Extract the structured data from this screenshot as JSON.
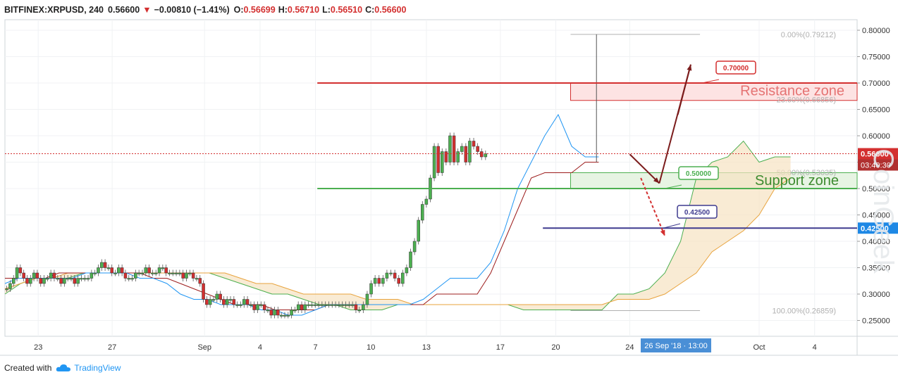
{
  "header": {
    "symbol": "BITFINEX:XRPUSD, 240",
    "last": "0.56600",
    "change": "−0.00810 (−1.41%)",
    "o_label": "O:",
    "o_value": "0.56699",
    "h_label": "H:",
    "h_value": "0.56710",
    "l_label": "L:",
    "l_value": "0.56510",
    "c_label": "C:",
    "c_value": "0.56600"
  },
  "footer": {
    "created_with": "Created with",
    "brand": "TradingView"
  },
  "watermark": "CoinGeek",
  "colors": {
    "resistance": "#d32f2f",
    "support": "#4caf50",
    "level": "#3f3b8f",
    "arrow_up": "#7b1c1c",
    "candle_up": "#4caf50",
    "candle_down": "#d32f2f",
    "cloud_a": "#4caf50",
    "cloud_b": "#e8a33d",
    "tenkan": "#2196f3",
    "kijun": "#9c1c1c"
  },
  "chart_data": {
    "type": "candlestick",
    "timeframe": "240",
    "yrange": [
      0.22,
      0.82
    ],
    "price_ticks": [
      "0.80000",
      "0.75000",
      "0.70000",
      "0.65000",
      "0.60000",
      "0.55000",
      "0.50000",
      "0.45000",
      "0.40000",
      "0.35000",
      "0.30000",
      "0.25000"
    ],
    "price_tick_values": [
      0.8,
      0.75,
      0.7,
      0.65,
      0.6,
      0.55,
      0.5,
      0.45,
      0.4,
      0.35,
      0.3,
      0.25
    ],
    "date_ticks": [
      "23",
      "27",
      "Sep",
      "4",
      "7",
      "10",
      "13",
      "17",
      "20",
      "24",
      "Oct",
      "4"
    ],
    "date_tick_days": [
      23,
      27,
      32,
      35,
      38,
      41,
      44,
      48,
      51,
      55,
      62,
      65
    ],
    "xrange_days": [
      21.2,
      67.3
    ],
    "current_price_label": "0.56600",
    "countdown_label": "03:40:30",
    "level_label": "0.42500",
    "crosshair_date": "26 Sep '18 · 13:00",
    "crosshair_day": 57.5,
    "close_series": {
      "start_day": 21.3,
      "step_days": 0.1667,
      "values": [
        0.31,
        0.32,
        0.33,
        0.35,
        0.34,
        0.33,
        0.32,
        0.33,
        0.34,
        0.33,
        0.32,
        0.33,
        0.33,
        0.34,
        0.33,
        0.33,
        0.32,
        0.33,
        0.33,
        0.33,
        0.32,
        0.33,
        0.33,
        0.33,
        0.33,
        0.34,
        0.34,
        0.35,
        0.36,
        0.35,
        0.35,
        0.34,
        0.34,
        0.35,
        0.34,
        0.33,
        0.33,
        0.33,
        0.34,
        0.34,
        0.34,
        0.35,
        0.34,
        0.34,
        0.34,
        0.35,
        0.35,
        0.34,
        0.34,
        0.34,
        0.34,
        0.34,
        0.33,
        0.34,
        0.34,
        0.33,
        0.33,
        0.32,
        0.29,
        0.28,
        0.29,
        0.29,
        0.3,
        0.29,
        0.28,
        0.29,
        0.29,
        0.28,
        0.28,
        0.28,
        0.29,
        0.28,
        0.28,
        0.27,
        0.28,
        0.28,
        0.27,
        0.27,
        0.26,
        0.27,
        0.26,
        0.26,
        0.26,
        0.26,
        0.27,
        0.27,
        0.28,
        0.27,
        0.28,
        0.28,
        0.28,
        0.28,
        0.28,
        0.28,
        0.28,
        0.28,
        0.28,
        0.28,
        0.28,
        0.28,
        0.28,
        0.28,
        0.28,
        0.27,
        0.27,
        0.28,
        0.3,
        0.32,
        0.33,
        0.32,
        0.33,
        0.34,
        0.34,
        0.33,
        0.32,
        0.34,
        0.35,
        0.38,
        0.4,
        0.44,
        0.47,
        0.48,
        0.52,
        0.58,
        0.53,
        0.57,
        0.55,
        0.6,
        0.55,
        0.57,
        0.58,
        0.55,
        0.59,
        0.58,
        0.57,
        0.56,
        0.566
      ],
      "bar_pixel_step": 0,
      "note_hi_spike": 0.79212
    },
    "ichimoku": {
      "tenkan": [
        0.32,
        0.33,
        0.33,
        0.33,
        0.33,
        0.33,
        0.34,
        0.34,
        0.34,
        0.34,
        0.33,
        0.33,
        0.32,
        0.3,
        0.29,
        0.29,
        0.28,
        0.28,
        0.28,
        0.27,
        0.27,
        0.26,
        0.26,
        0.27,
        0.28,
        0.28,
        0.28,
        0.28,
        0.28,
        0.28,
        0.28,
        0.29,
        0.31,
        0.33,
        0.33,
        0.33,
        0.36,
        0.42,
        0.5,
        0.55,
        0.6,
        0.64,
        0.58,
        0.56,
        0.56
      ],
      "kijun": [
        0.33,
        0.33,
        0.33,
        0.33,
        0.34,
        0.34,
        0.34,
        0.34,
        0.34,
        0.34,
        0.34,
        0.33,
        0.33,
        0.32,
        0.31,
        0.3,
        0.29,
        0.28,
        0.28,
        0.28,
        0.27,
        0.27,
        0.27,
        0.27,
        0.28,
        0.28,
        0.28,
        0.28,
        0.28,
        0.28,
        0.28,
        0.28,
        0.3,
        0.3,
        0.3,
        0.3,
        0.34,
        0.4,
        0.46,
        0.52,
        0.53,
        0.53,
        0.53,
        0.55,
        0.55
      ],
      "span_a": [
        0.3,
        0.32,
        0.33,
        0.33,
        0.33,
        0.34,
        0.34,
        0.34,
        0.34,
        0.34,
        0.34,
        0.34,
        0.34,
        0.34,
        0.33,
        0.32,
        0.31,
        0.3,
        0.3,
        0.29,
        0.28,
        0.28,
        0.27,
        0.27,
        0.27,
        0.28,
        0.28,
        0.28,
        0.28,
        0.28,
        0.28,
        0.28,
        0.28,
        0.27,
        0.27,
        0.27,
        0.27,
        0.27,
        0.27,
        0.3,
        0.3,
        0.31,
        0.34,
        0.4,
        0.52,
        0.55,
        0.56,
        0.59,
        0.55,
        0.56,
        0.56
      ],
      "span_b": [
        0.31,
        0.32,
        0.33,
        0.33,
        0.34,
        0.34,
        0.34,
        0.34,
        0.34,
        0.34,
        0.34,
        0.34,
        0.34,
        0.34,
        0.34,
        0.33,
        0.32,
        0.32,
        0.31,
        0.3,
        0.3,
        0.3,
        0.3,
        0.29,
        0.29,
        0.29,
        0.28,
        0.28,
        0.28,
        0.28,
        0.28,
        0.28,
        0.28,
        0.28,
        0.28,
        0.28,
        0.28,
        0.28,
        0.28,
        0.29,
        0.29,
        0.29,
        0.3,
        0.32,
        0.34,
        0.38,
        0.4,
        0.42,
        0.45,
        0.5,
        0.52
      ],
      "span_start_day": 21.2,
      "span_step_days": 0.85,
      "line_start_day": 21.2,
      "line_step_days": 0.73
    },
    "levels": {
      "resistance": 0.7,
      "support": 0.5,
      "key": 0.425,
      "resistance_zone": [
        0.667,
        0.7
      ],
      "support_zone": [
        0.5,
        0.53
      ],
      "fib_high": 0.79212,
      "fib_low": 0.26859
    },
    "fib_labels": [
      "0.00%(0.79212)",
      "23.60%(0.66856)",
      "50.00%(0.53035)",
      "100.00%(0.26859)"
    ],
    "fib_values": [
      0.79212,
      0.66856,
      0.53035,
      0.26859
    ],
    "annotations": {
      "resistance_label": "Resistance zone",
      "support_label": "Support zone",
      "target_high": "0.70000",
      "target_mid": "0.50000",
      "target_low": "0.42500"
    }
  }
}
